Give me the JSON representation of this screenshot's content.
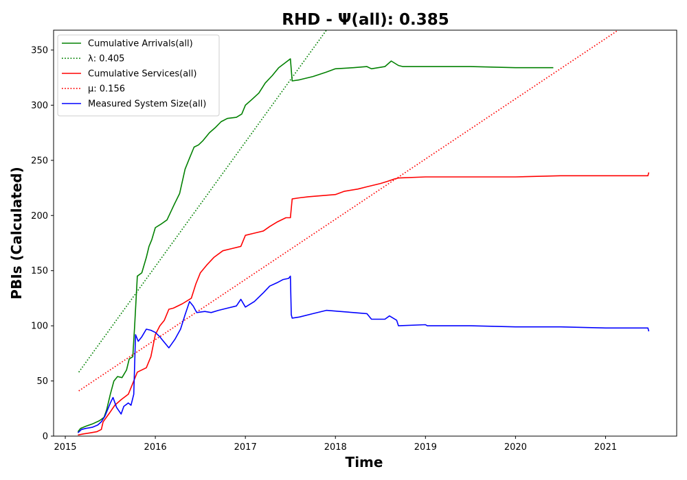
{
  "chart_data": {
    "type": "line",
    "title": "RHD -  Ψ(all): 0.385",
    "xlabel": "Time",
    "ylabel": "PBIs (Calculated)",
    "xlim": [
      2014.87,
      2021.79
    ],
    "ylim": [
      0,
      368
    ],
    "x_ticks": [
      2015,
      2016,
      2017,
      2018,
      2019,
      2020,
      2021
    ],
    "x_tick_labels": [
      "2015",
      "2016",
      "2017",
      "2018",
      "2019",
      "2020",
      "2021"
    ],
    "y_ticks": [
      0,
      50,
      100,
      150,
      200,
      250,
      300,
      350
    ],
    "y_tick_labels": [
      "0",
      "50",
      "100",
      "150",
      "200",
      "250",
      "300",
      "350"
    ],
    "grid": false,
    "legend_position": "top-left",
    "series": [
      {
        "name": "Cumulative Arrivals(all)",
        "color": "#008000",
        "style": "solid",
        "points": [
          [
            2015.14,
            4
          ],
          [
            2015.17,
            7
          ],
          [
            2015.23,
            9
          ],
          [
            2015.3,
            11
          ],
          [
            2015.38,
            14
          ],
          [
            2015.43,
            17
          ],
          [
            2015.46,
            24
          ],
          [
            2015.5,
            38
          ],
          [
            2015.54,
            50
          ],
          [
            2015.58,
            54
          ],
          [
            2015.63,
            53
          ],
          [
            2015.68,
            60
          ],
          [
            2015.71,
            70
          ],
          [
            2015.75,
            72
          ],
          [
            2015.77,
            100
          ],
          [
            2015.8,
            145
          ],
          [
            2015.85,
            148
          ],
          [
            2015.9,
            162
          ],
          [
            2015.93,
            172
          ],
          [
            2015.96,
            178
          ],
          [
            2016.0,
            189
          ],
          [
            2016.06,
            192
          ],
          [
            2016.13,
            196
          ],
          [
            2016.21,
            210
          ],
          [
            2016.27,
            220
          ],
          [
            2016.33,
            242
          ],
          [
            2016.38,
            252
          ],
          [
            2016.43,
            262
          ],
          [
            2016.48,
            264
          ],
          [
            2016.53,
            268
          ],
          [
            2016.6,
            275
          ],
          [
            2016.67,
            280
          ],
          [
            2016.73,
            285
          ],
          [
            2016.8,
            288
          ],
          [
            2016.9,
            289
          ],
          [
            2016.96,
            292
          ],
          [
            2017.0,
            300
          ],
          [
            2017.07,
            305
          ],
          [
            2017.15,
            311
          ],
          [
            2017.22,
            320
          ],
          [
            2017.3,
            327
          ],
          [
            2017.37,
            334
          ],
          [
            2017.45,
            339
          ],
          [
            2017.5,
            342
          ],
          [
            2017.52,
            322
          ],
          [
            2017.6,
            323
          ],
          [
            2017.75,
            326
          ],
          [
            2017.9,
            330
          ],
          [
            2018.0,
            333
          ],
          [
            2018.2,
            334
          ],
          [
            2018.35,
            335
          ],
          [
            2018.4,
            333
          ],
          [
            2018.55,
            335
          ],
          [
            2018.62,
            340
          ],
          [
            2018.7,
            336
          ],
          [
            2018.75,
            335
          ],
          [
            2019.0,
            335
          ],
          [
            2019.5,
            335
          ],
          [
            2020.0,
            334
          ],
          [
            2020.42,
            334
          ]
        ]
      },
      {
        "name": "λ: 0.405",
        "color": "#008000",
        "style": "dotted",
        "points": [
          [
            2015.15,
            58
          ],
          [
            2017.9,
            368
          ]
        ]
      },
      {
        "name": "Cumulative Services(all)",
        "color": "#ff0000",
        "style": "solid",
        "points": [
          [
            2015.14,
            1
          ],
          [
            2015.2,
            2
          ],
          [
            2015.28,
            3
          ],
          [
            2015.35,
            4
          ],
          [
            2015.4,
            6
          ],
          [
            2015.42,
            13
          ],
          [
            2015.5,
            22
          ],
          [
            2015.55,
            28
          ],
          [
            2015.62,
            33
          ],
          [
            2015.7,
            38
          ],
          [
            2015.76,
            50
          ],
          [
            2015.8,
            58
          ],
          [
            2015.9,
            62
          ],
          [
            2015.95,
            72
          ],
          [
            2016.0,
            92
          ],
          [
            2016.05,
            100
          ],
          [
            2016.1,
            105
          ],
          [
            2016.15,
            115
          ],
          [
            2016.2,
            116
          ],
          [
            2016.3,
            120
          ],
          [
            2016.4,
            125
          ],
          [
            2016.45,
            138
          ],
          [
            2016.5,
            148
          ],
          [
            2016.57,
            155
          ],
          [
            2016.65,
            162
          ],
          [
            2016.75,
            168
          ],
          [
            2016.85,
            170
          ],
          [
            2016.95,
            172
          ],
          [
            2017.0,
            182
          ],
          [
            2017.1,
            184
          ],
          [
            2017.2,
            186
          ],
          [
            2017.27,
            190
          ],
          [
            2017.35,
            194
          ],
          [
            2017.45,
            198
          ],
          [
            2017.5,
            198
          ],
          [
            2017.52,
            215
          ],
          [
            2017.6,
            216
          ],
          [
            2017.7,
            217
          ],
          [
            2017.85,
            218
          ],
          [
            2018.0,
            219
          ],
          [
            2018.1,
            222
          ],
          [
            2018.25,
            224
          ],
          [
            2018.35,
            226
          ],
          [
            2018.5,
            229
          ],
          [
            2018.58,
            231
          ],
          [
            2018.65,
            233
          ],
          [
            2018.7,
            234
          ],
          [
            2019.0,
            235
          ],
          [
            2019.5,
            235
          ],
          [
            2020.0,
            235
          ],
          [
            2020.5,
            236
          ],
          [
            2021.0,
            236
          ],
          [
            2021.47,
            236
          ],
          [
            2021.48,
            239
          ]
        ]
      },
      {
        "name": "μ: 0.156",
        "color": "#ff0000",
        "style": "dotted",
        "points": [
          [
            2015.15,
            41
          ],
          [
            2021.14,
            368
          ]
        ]
      },
      {
        "name": "Measured System Size(all)",
        "color": "#0000ff",
        "style": "solid",
        "points": [
          [
            2015.14,
            3
          ],
          [
            2015.18,
            6
          ],
          [
            2015.23,
            7
          ],
          [
            2015.3,
            8
          ],
          [
            2015.36,
            10
          ],
          [
            2015.4,
            13
          ],
          [
            2015.44,
            18
          ],
          [
            2015.47,
            24
          ],
          [
            2015.5,
            30
          ],
          [
            2015.53,
            35
          ],
          [
            2015.57,
            26
          ],
          [
            2015.62,
            20
          ],
          [
            2015.65,
            27
          ],
          [
            2015.7,
            30
          ],
          [
            2015.73,
            28
          ],
          [
            2015.76,
            38
          ],
          [
            2015.78,
            92
          ],
          [
            2015.81,
            86
          ],
          [
            2015.85,
            90
          ],
          [
            2015.9,
            97
          ],
          [
            2015.95,
            96
          ],
          [
            2016.0,
            94
          ],
          [
            2016.05,
            90
          ],
          [
            2016.1,
            85
          ],
          [
            2016.15,
            80
          ],
          [
            2016.22,
            88
          ],
          [
            2016.28,
            97
          ],
          [
            2016.33,
            110
          ],
          [
            2016.38,
            122
          ],
          [
            2016.42,
            118
          ],
          [
            2016.46,
            112
          ],
          [
            2016.55,
            113
          ],
          [
            2016.62,
            112
          ],
          [
            2016.7,
            114
          ],
          [
            2016.8,
            116
          ],
          [
            2016.9,
            118
          ],
          [
            2016.95,
            124
          ],
          [
            2017.0,
            117
          ],
          [
            2017.1,
            122
          ],
          [
            2017.2,
            130
          ],
          [
            2017.27,
            136
          ],
          [
            2017.35,
            139
          ],
          [
            2017.42,
            142
          ],
          [
            2017.48,
            143
          ],
          [
            2017.5,
            145
          ],
          [
            2017.51,
            110
          ],
          [
            2017.52,
            107
          ],
          [
            2017.6,
            108
          ],
          [
            2017.75,
            111
          ],
          [
            2017.9,
            114
          ],
          [
            2018.05,
            113
          ],
          [
            2018.2,
            112
          ],
          [
            2018.35,
            111
          ],
          [
            2018.4,
            106
          ],
          [
            2018.55,
            106
          ],
          [
            2018.6,
            109
          ],
          [
            2018.68,
            105
          ],
          [
            2018.7,
            100
          ],
          [
            2019.0,
            101
          ],
          [
            2019.02,
            100
          ],
          [
            2019.5,
            100
          ],
          [
            2020.0,
            99
          ],
          [
            2020.5,
            99
          ],
          [
            2021.0,
            98
          ],
          [
            2021.47,
            98
          ],
          [
            2021.48,
            95
          ]
        ]
      }
    ]
  }
}
